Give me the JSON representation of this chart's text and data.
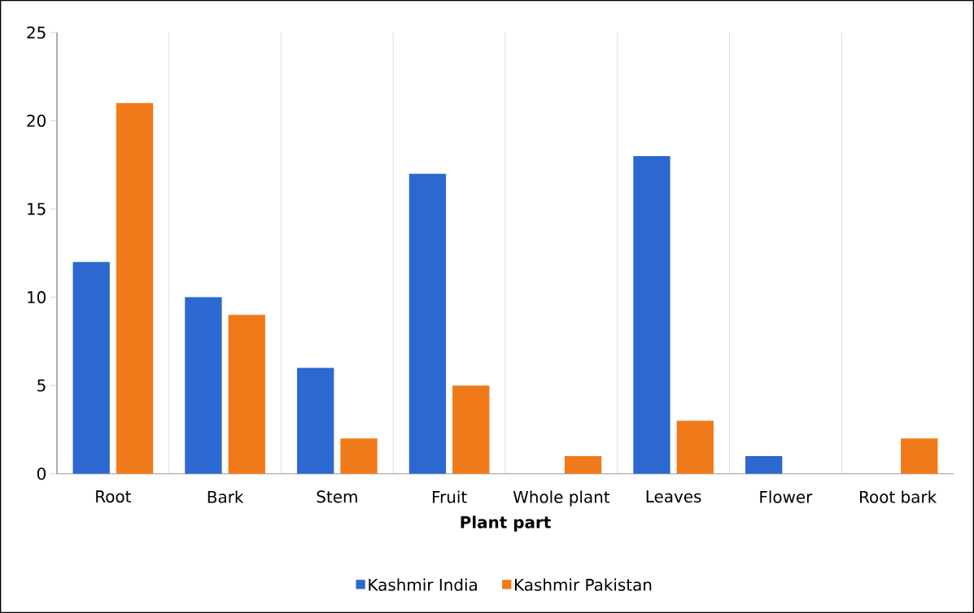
{
  "chart_data": {
    "type": "bar",
    "xlabel": "Plant part",
    "categories": [
      "Root",
      "Bark",
      "Stem",
      "Fruit",
      "Whole plant",
      "Leaves",
      "Flower",
      "Root bark"
    ],
    "series": [
      {
        "name": "Kashmir India",
        "color": "#2c68cf",
        "values": [
          12,
          10,
          6,
          17,
          0,
          18,
          1,
          0
        ]
      },
      {
        "name": "Kashmir Pakistan",
        "color": "#f07a1a",
        "values": [
          21,
          9,
          2,
          5,
          1,
          3,
          0,
          2
        ]
      }
    ],
    "ylim": [
      0,
      25
    ],
    "yticks": [
      0,
      5,
      10,
      15,
      20,
      25
    ],
    "grid": "x",
    "legend": "bottom"
  }
}
